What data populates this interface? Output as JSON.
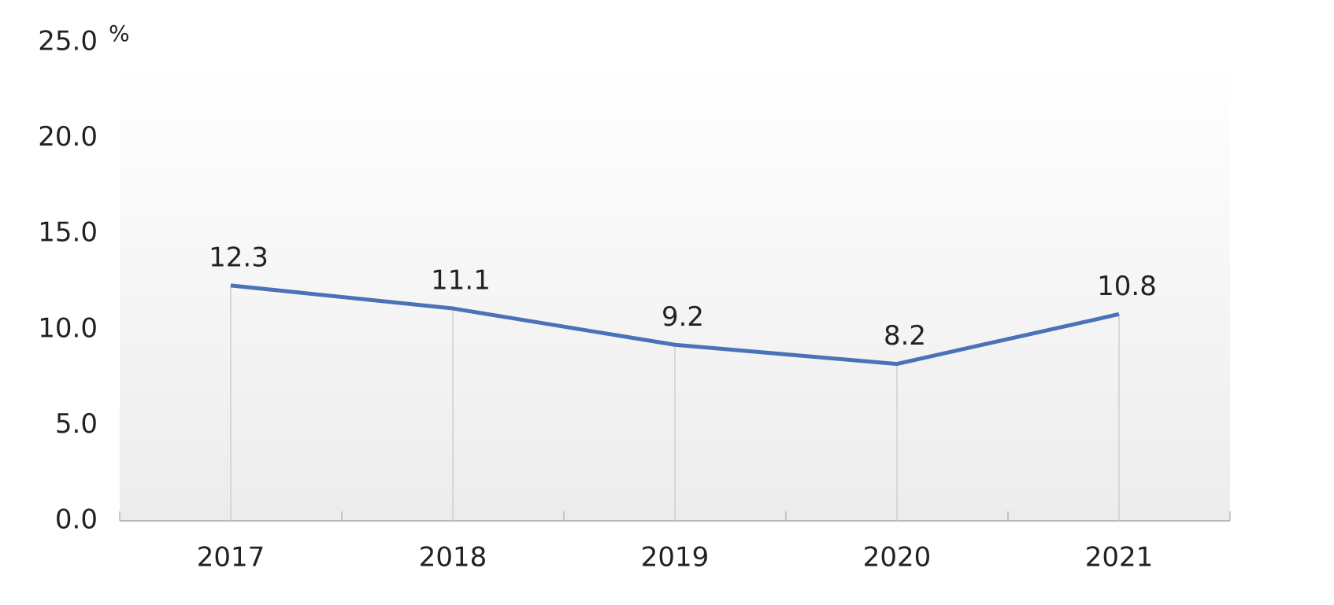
{
  "chart_data": {
    "type": "line",
    "y_unit": "%",
    "categories": [
      "2017",
      "2018",
      "2019",
      "2020",
      "2021"
    ],
    "series": [
      {
        "color": "#4a72b8",
        "values": [
          12.3,
          11.1,
          9.2,
          8.2,
          10.8
        ]
      }
    ],
    "ylim": [
      0,
      25
    ],
    "yticks": [
      {
        "value": 0,
        "label": "0.0"
      },
      {
        "value": 5,
        "label": "5.0"
      },
      {
        "value": 10,
        "label": "10.0"
      },
      {
        "value": 15,
        "label": "15.0"
      },
      {
        "value": 20,
        "label": "20.0"
      },
      {
        "value": 25,
        "label": "25.0"
      }
    ],
    "grid": false
  }
}
